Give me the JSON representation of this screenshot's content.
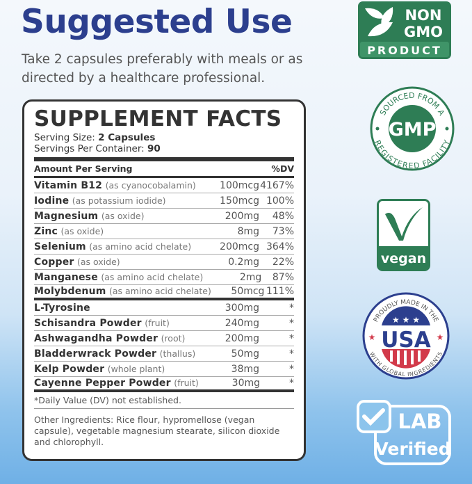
{
  "title": "Suggested Use",
  "subtitle": "Take 2 capsules preferably with meals or as directed by a healthcare professional.",
  "facts": {
    "heading": "SUPPLEMENT FACTS",
    "serving_size_label": "Serving Size:",
    "serving_size": "2 Capsules",
    "servings_label": "Servings Per Container:",
    "servings": "90",
    "amount_header": "Amount Per Serving",
    "dv_header": "%DV",
    "vitamins": [
      {
        "name": "Vitamin B12",
        "source": "(as cyanocobalamin)",
        "amount": "100mcg",
        "dv": "4167%"
      },
      {
        "name": "Iodine",
        "source": "(as potassium iodide)",
        "amount": "150mcg",
        "dv": "100%"
      },
      {
        "name": "Magnesium",
        "source": "(as oxide)",
        "amount": "200mg",
        "dv": "48%"
      },
      {
        "name": "Zinc",
        "source": "(as oxide)",
        "amount": "8mg",
        "dv": "73%"
      },
      {
        "name": "Selenium",
        "source": "(as amino acid chelate)",
        "amount": "200mcg",
        "dv": "364%"
      },
      {
        "name": "Copper",
        "source": "(as oxide)",
        "amount": "0.2mg",
        "dv": "22%"
      },
      {
        "name": "Manganese",
        "source": "(as amino acid chelate)",
        "amount": "2mg",
        "dv": "87%"
      },
      {
        "name": "Molybdenum",
        "source": "(as amino acid chelate)",
        "amount": "50mcg",
        "dv": "111%"
      }
    ],
    "others": [
      {
        "name": "L-Tyrosine",
        "source": "",
        "amount": "300mg",
        "dv": "*"
      },
      {
        "name": "Schisandra Powder",
        "source": "(fruit)",
        "amount": "240mg",
        "dv": "*"
      },
      {
        "name": "Ashwagandha Powder",
        "source": "(root)",
        "amount": "200mg",
        "dv": "*"
      },
      {
        "name": "Bladderwrack Powder",
        "source": "(thallus)",
        "amount": "50mg",
        "dv": "*"
      },
      {
        "name": "Kelp Powder",
        "source": "(whole plant)",
        "amount": "38mg",
        "dv": "*"
      },
      {
        "name": "Cayenne Pepper Powder",
        "source": "(fruit)",
        "amount": "30mg",
        "dv": "*"
      }
    ],
    "dv_note": "*Daily Value (DV) not established.",
    "other_ingredients": "Other Ingredients: Rice flour, hypromellose (vegan capsule), vegetable magnesium stearate, silicon dioxide and chlorophyll."
  },
  "badges": {
    "non_gmo": [
      "NON",
      "GMO",
      "PRODUCT"
    ],
    "gmp": {
      "top": "SOURCED FROM A",
      "center": "GMP",
      "bottom": "REGISTERED FACILITY"
    },
    "vegan": "vegan",
    "usa": {
      "top": "PROUDLY MADE IN THE",
      "center": "USA",
      "bottom": "WITH GLOBAL INGREDIENTS"
    },
    "lab": [
      "LAB",
      "Verified"
    ]
  },
  "colors": {
    "title": "#2c3f8e",
    "green": "#2e7d55",
    "usa_blue": "#2c3f8e",
    "usa_red": "#d23a4a"
  }
}
